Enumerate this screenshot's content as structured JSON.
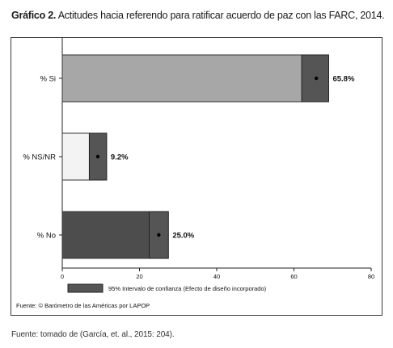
{
  "caption": {
    "label": "Gráfico 2.",
    "text": "Actitudes hacia referendo para ratificar acuerdo de paz con las FARC, 2014."
  },
  "chart_data": {
    "type": "bar",
    "orientation": "horizontal",
    "categories": [
      "% Si",
      "% NS/NR",
      "% No"
    ],
    "values": [
      65.8,
      9.2,
      25.0
    ],
    "value_labels": [
      "65.8%",
      "9.2%",
      "25.0%"
    ],
    "ci_low": [
      62,
      7,
      22.5
    ],
    "ci_high": [
      69,
      11.5,
      27.5
    ],
    "colors": [
      "#a7a7a7",
      "#f3f3f3",
      "#4d4d4d"
    ],
    "ci_color": "#555555",
    "xlim": [
      0,
      80
    ],
    "xticks": [
      0,
      20,
      40,
      60,
      80
    ],
    "xtick_labels": [
      "0",
      "20",
      "40",
      "60",
      "80"
    ],
    "grid": false,
    "legend": {
      "label": "95% Intervalo de confianza (Efecto de diseño incorporado)",
      "placement": "bottom"
    }
  },
  "source_inner": "Fuente: © Barómetro de las Américas por LAPOP",
  "footer": "Fuente: tomado de (García, et. al., 2015: 204)."
}
